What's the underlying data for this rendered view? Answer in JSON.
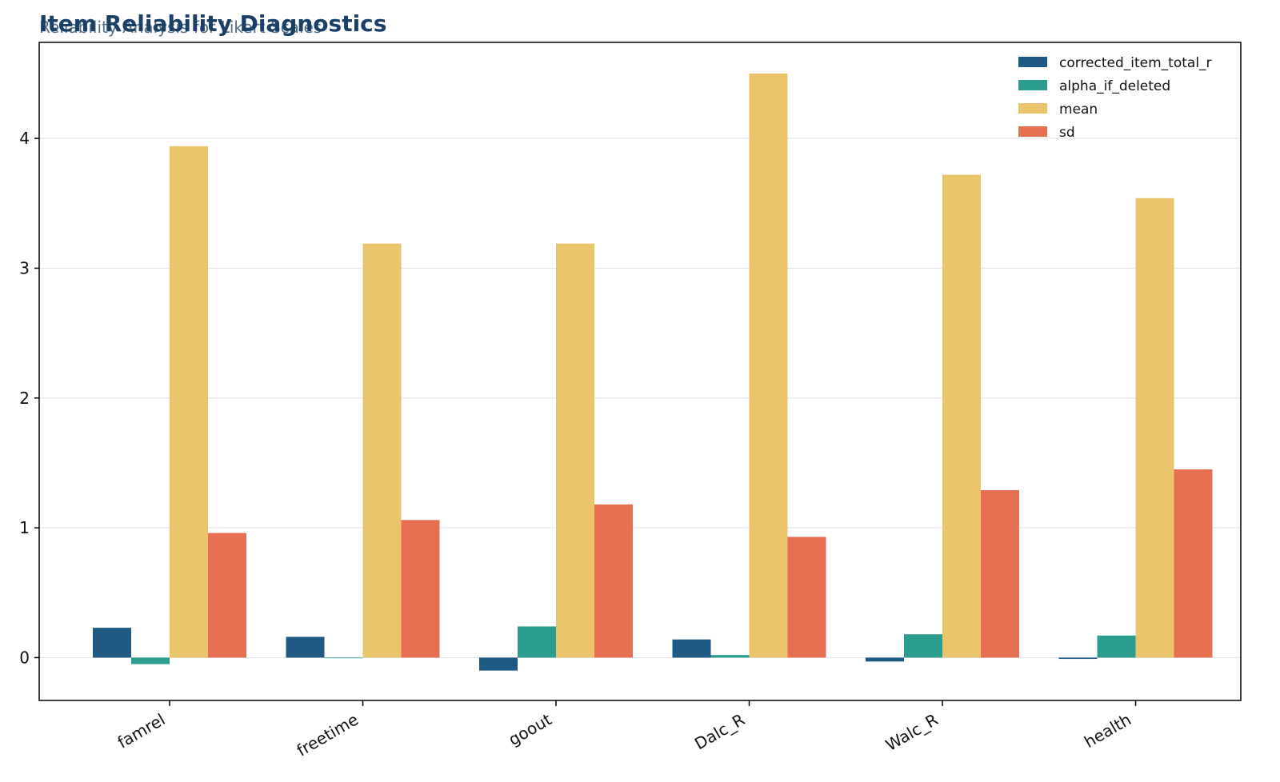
{
  "chart_data": {
    "type": "bar",
    "title": "Item Reliability Diagnostics",
    "subtitle": "Reliability Analysis for Likert Scales",
    "xlabel": "",
    "ylabel": "",
    "categories": [
      "famrel",
      "freetime",
      "goout",
      "Dalc_R",
      "Walc_R",
      "health"
    ],
    "series": [
      {
        "name": "corrected_item_total_r",
        "color": "#1f5a85",
        "values": [
          0.23,
          0.16,
          -0.1,
          0.14,
          -0.03,
          -0.01
        ]
      },
      {
        "name": "alpha_if_deleted",
        "color": "#2a9d8f",
        "values": [
          -0.05,
          0.0,
          0.24,
          0.02,
          0.18,
          0.17
        ]
      },
      {
        "name": "mean",
        "color": "#e9c46a",
        "values": [
          3.94,
          3.19,
          3.19,
          4.5,
          3.72,
          3.54
        ]
      },
      {
        "name": "sd",
        "color": "#e76f51",
        "values": [
          0.96,
          1.06,
          1.18,
          0.93,
          1.29,
          1.45
        ]
      }
    ],
    "ylim": [
      -0.33,
      4.74
    ],
    "yticks": [
      0,
      1,
      2,
      3,
      4
    ],
    "grid": "horizontal",
    "legend_position": "top-right"
  }
}
